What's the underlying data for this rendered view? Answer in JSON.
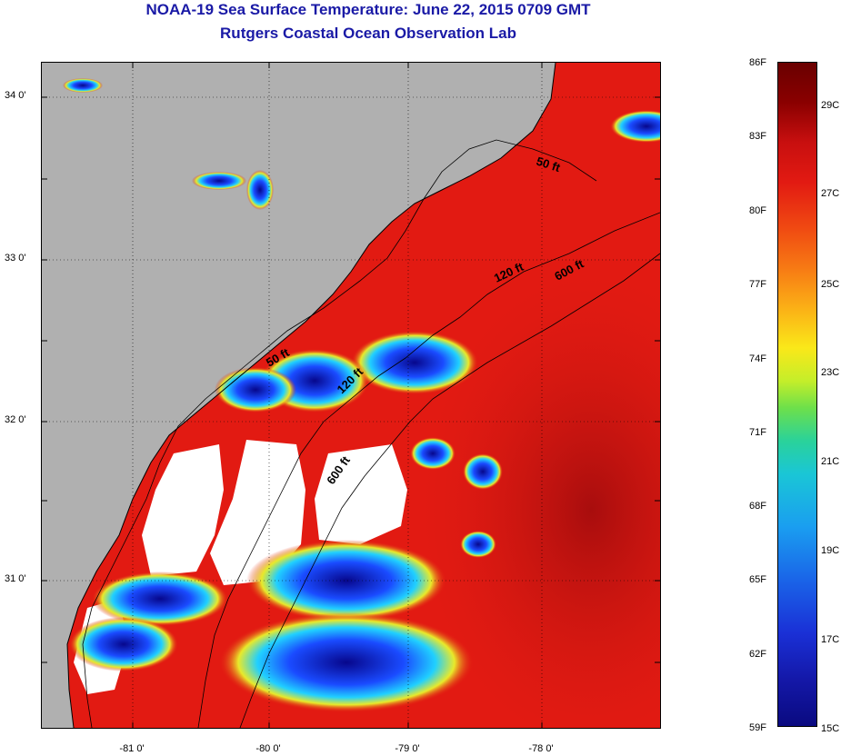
{
  "title": "NOAA-19 Sea Surface Temperature:  June 22, 2015 0709 GMT",
  "subtitle": "Rutgers Coastal Ocean Observation Lab",
  "map": {
    "lat_labels": [
      "34 0'",
      "33 0'",
      "32 0'",
      "31 0'"
    ],
    "lon_labels": [
      "-81 0'",
      "-80 0'",
      "-79 0'",
      "-78 0'"
    ],
    "contours": [
      "50 ft",
      "120 ft",
      "600 ft",
      "50 ft",
      "120 ft",
      "600 ft"
    ],
    "colors": {
      "land": "#b0b0b0",
      "ocean_warm": "#e21a12",
      "ocean_hot": "#b80f0f",
      "cloud": "#ffffff",
      "cold": "#0a0a9a"
    }
  },
  "colorbar": {
    "fahrenheit": [
      "86F",
      "83F",
      "80F",
      "77F",
      "74F",
      "71F",
      "68F",
      "65F",
      "62F",
      "59F"
    ],
    "celsius": [
      "29C",
      "27C",
      "25C",
      "23C",
      "21C",
      "19C",
      "17C",
      "15C"
    ]
  }
}
